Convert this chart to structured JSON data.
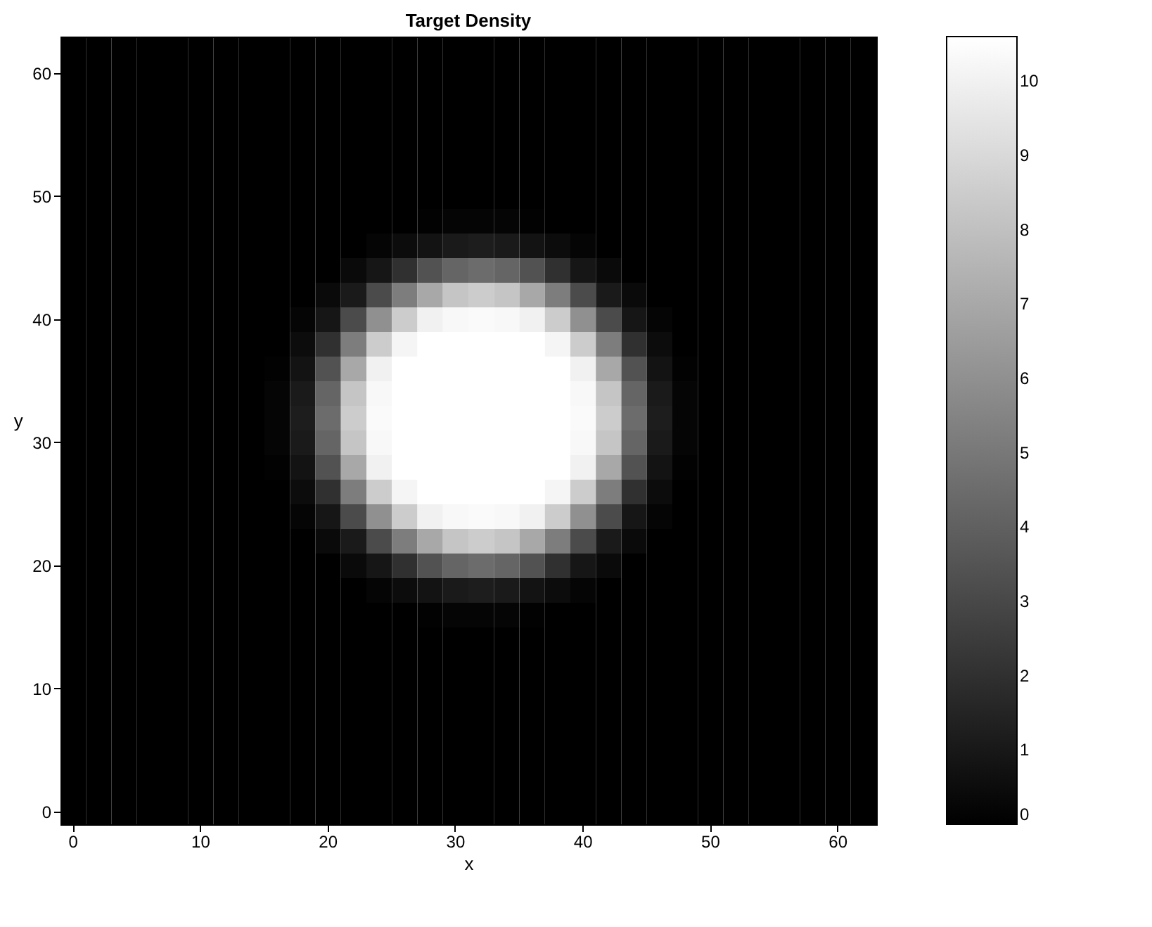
{
  "chart_data": {
    "type": "heatmap",
    "title": "Target Density",
    "xlabel": "x",
    "ylabel": "y",
    "categories": [
      "0",
      null,
      null,
      null,
      null,
      "10",
      null,
      null,
      null,
      null,
      "20",
      null,
      null,
      null,
      null,
      "30",
      null,
      null,
      null,
      null,
      "40",
      null,
      null,
      null,
      null,
      "50",
      null,
      null,
      null,
      null,
      "60",
      null
    ],
    "y_categories": [
      null,
      "60",
      null,
      null,
      null,
      null,
      "50",
      null,
      null,
      null,
      null,
      "40",
      null,
      null,
      null,
      null,
      "30",
      null,
      null,
      null,
      null,
      "20",
      null,
      null,
      null,
      null,
      "10",
      null,
      null,
      null,
      null,
      "0"
    ],
    "cells": [
      [
        0,
        0,
        0,
        0,
        0,
        0,
        0,
        0,
        0,
        0,
        0,
        0,
        0,
        0,
        0,
        0,
        0,
        0,
        0,
        0,
        0,
        0,
        0,
        0,
        0,
        0,
        0,
        0,
        0,
        0,
        0,
        0
      ],
      [
        0,
        0,
        0,
        0,
        0,
        0,
        0,
        0,
        0,
        0,
        0,
        0,
        0,
        0,
        0,
        0,
        0,
        0,
        0,
        0,
        0,
        0,
        0,
        0,
        0,
        0,
        0,
        0,
        0,
        0,
        0,
        0
      ],
      [
        0,
        0,
        0,
        0,
        0,
        0,
        0,
        0,
        0,
        0,
        0,
        0,
        0,
        0,
        0,
        0,
        0,
        0,
        0,
        0,
        0,
        0,
        0,
        0,
        0,
        0,
        0,
        0,
        0,
        0,
        0,
        0
      ],
      [
        0,
        0,
        0,
        0,
        0,
        0,
        0,
        0,
        0,
        0,
        0,
        0,
        0,
        0,
        0,
        0,
        0,
        0,
        0,
        0,
        0,
        0,
        0,
        0,
        0,
        0,
        0,
        0,
        0,
        0,
        0,
        0
      ],
      [
        0,
        0,
        0,
        0,
        0,
        0,
        0,
        0,
        0,
        0,
        0,
        0,
        0,
        0,
        0,
        0,
        0,
        0,
        0,
        0,
        0,
        0,
        0,
        0,
        0,
        0,
        0,
        0,
        0,
        0,
        0,
        0
      ],
      [
        0,
        0,
        0,
        0,
        0,
        0,
        0,
        0,
        0,
        0,
        0,
        0,
        0,
        0,
        0,
        0,
        0,
        0,
        0,
        0,
        0,
        0,
        0,
        0,
        0,
        0,
        0,
        0,
        0,
        0,
        0,
        0
      ],
      [
        0,
        0,
        0,
        0,
        0,
        0,
        0,
        0,
        0,
        0,
        0,
        0,
        0,
        0,
        0,
        0,
        0,
        0,
        0,
        0,
        0,
        0,
        0,
        0,
        0,
        0,
        0,
        0,
        0,
        0,
        0,
        0
      ],
      [
        0,
        0,
        0,
        0,
        0,
        0,
        0,
        0,
        0,
        0,
        0,
        0,
        0,
        0,
        0.1,
        0.2,
        0.2,
        0.2,
        0.1,
        0,
        0,
        0,
        0,
        0,
        0,
        0,
        0,
        0,
        0,
        0,
        0,
        0
      ],
      [
        0,
        0,
        0,
        0,
        0,
        0,
        0,
        0,
        0,
        0,
        0,
        0,
        0.2,
        0.5,
        0.8,
        1.1,
        1.2,
        1.1,
        0.8,
        0.5,
        0.2,
        0,
        0,
        0,
        0,
        0,
        0,
        0,
        0,
        0,
        0,
        0
      ],
      [
        0,
        0,
        0,
        0,
        0,
        0,
        0,
        0,
        0,
        0,
        0,
        0.4,
        0.9,
        2,
        3.4,
        4.2,
        4.5,
        4.2,
        3.4,
        2,
        0.9,
        0.4,
        0,
        0,
        0,
        0,
        0,
        0,
        0,
        0,
        0,
        0
      ],
      [
        0,
        0,
        0,
        0,
        0,
        0,
        0,
        0,
        0,
        0,
        0.4,
        1.1,
        3.1,
        5.2,
        7,
        8.2,
        8.5,
        8.2,
        7,
        5.2,
        3.1,
        1.1,
        0.4,
        0,
        0,
        0,
        0,
        0,
        0,
        0,
        0,
        0
      ],
      [
        0,
        0,
        0,
        0,
        0,
        0,
        0,
        0,
        0,
        0.2,
        0.9,
        3.1,
        6,
        8.5,
        10,
        10.3,
        10.4,
        10.3,
        10,
        8.5,
        6,
        3.1,
        0.9,
        0.2,
        0,
        0,
        0,
        0,
        0,
        0,
        0,
        0
      ],
      [
        0,
        0,
        0,
        0,
        0,
        0,
        0,
        0,
        0,
        0.5,
        2,
        5.2,
        8.5,
        10.2,
        10.6,
        10.6,
        10.6,
        10.6,
        10.6,
        10.2,
        8.5,
        5.2,
        2,
        0.5,
        0,
        0,
        0,
        0,
        0,
        0,
        0,
        0
      ],
      [
        0,
        0,
        0,
        0,
        0,
        0,
        0,
        0,
        0.1,
        0.8,
        3.4,
        7,
        10,
        10.6,
        10.6,
        10.6,
        10.6,
        10.6,
        10.6,
        10.6,
        10,
        7,
        3.4,
        0.8,
        0.1,
        0,
        0,
        0,
        0,
        0,
        0,
        0
      ],
      [
        0,
        0,
        0,
        0,
        0,
        0,
        0,
        0,
        0.2,
        1.1,
        4.2,
        8.2,
        10.3,
        10.6,
        10.6,
        10.6,
        10.6,
        10.6,
        10.6,
        10.6,
        10.3,
        8.2,
        4.2,
        1.1,
        0.2,
        0,
        0,
        0,
        0,
        0,
        0,
        0
      ],
      [
        0,
        0,
        0,
        0,
        0,
        0,
        0,
        0,
        0.2,
        1.2,
        4.5,
        8.5,
        10.4,
        10.6,
        10.6,
        10.6,
        10.6,
        10.6,
        10.6,
        10.6,
        10.4,
        8.5,
        4.5,
        1.2,
        0.2,
        0,
        0,
        0,
        0,
        0,
        0,
        0
      ],
      [
        0,
        0,
        0,
        0,
        0,
        0,
        0,
        0,
        0.2,
        1.1,
        4.2,
        8.2,
        10.3,
        10.6,
        10.6,
        10.6,
        10.6,
        10.6,
        10.6,
        10.6,
        10.3,
        8.2,
        4.2,
        1.1,
        0.2,
        0,
        0,
        0,
        0,
        0,
        0,
        0
      ],
      [
        0,
        0,
        0,
        0,
        0,
        0,
        0,
        0,
        0.1,
        0.8,
        3.4,
        7,
        10,
        10.6,
        10.6,
        10.6,
        10.6,
        10.6,
        10.6,
        10.6,
        10,
        7,
        3.4,
        0.8,
        0.1,
        0,
        0,
        0,
        0,
        0,
        0,
        0
      ],
      [
        0,
        0,
        0,
        0,
        0,
        0,
        0,
        0,
        0,
        0.5,
        2,
        5.2,
        8.5,
        10.2,
        10.6,
        10.6,
        10.6,
        10.6,
        10.6,
        10.2,
        8.5,
        5.2,
        2,
        0.5,
        0,
        0,
        0,
        0,
        0,
        0,
        0,
        0
      ],
      [
        0,
        0,
        0,
        0,
        0,
        0,
        0,
        0,
        0,
        0.2,
        0.9,
        3.1,
        6,
        8.5,
        10,
        10.3,
        10.4,
        10.3,
        10,
        8.5,
        6,
        3.1,
        0.9,
        0.2,
        0,
        0,
        0,
        0,
        0,
        0,
        0,
        0
      ],
      [
        0,
        0,
        0,
        0,
        0,
        0,
        0,
        0,
        0,
        0,
        0.4,
        1.1,
        3.1,
        5.2,
        7,
        8.2,
        8.5,
        8.2,
        7,
        5.2,
        3.1,
        1.1,
        0.4,
        0,
        0,
        0,
        0,
        0,
        0,
        0,
        0,
        0
      ],
      [
        0,
        0,
        0,
        0,
        0,
        0,
        0,
        0,
        0,
        0,
        0,
        0.4,
        0.9,
        2,
        3.4,
        4.2,
        4.5,
        4.2,
        3.4,
        2,
        0.9,
        0.4,
        0,
        0,
        0,
        0,
        0,
        0,
        0,
        0,
        0,
        0
      ],
      [
        0,
        0,
        0,
        0,
        0,
        0,
        0,
        0,
        0,
        0,
        0,
        0,
        0.2,
        0.5,
        0.8,
        1.1,
        1.2,
        1.1,
        0.8,
        0.5,
        0.2,
        0,
        0,
        0,
        0,
        0,
        0,
        0,
        0,
        0,
        0,
        0
      ],
      [
        0,
        0,
        0,
        0,
        0,
        0,
        0,
        0,
        0,
        0,
        0,
        0,
        0,
        0,
        0.1,
        0.2,
        0.2,
        0.2,
        0.1,
        0,
        0,
        0,
        0,
        0,
        0,
        0,
        0,
        0,
        0,
        0,
        0,
        0
      ],
      [
        0,
        0,
        0,
        0,
        0,
        0,
        0,
        0,
        0,
        0,
        0,
        0,
        0,
        0,
        0,
        0,
        0,
        0,
        0,
        0,
        0,
        0,
        0,
        0,
        0,
        0,
        0,
        0,
        0,
        0,
        0,
        0
      ],
      [
        0,
        0,
        0,
        0,
        0,
        0,
        0,
        0,
        0,
        0,
        0,
        0,
        0,
        0,
        0,
        0,
        0,
        0,
        0,
        0,
        0,
        0,
        0,
        0,
        0,
        0,
        0,
        0,
        0,
        0,
        0,
        0
      ],
      [
        0,
        0,
        0,
        0,
        0,
        0,
        0,
        0,
        0,
        0,
        0,
        0,
        0,
        0,
        0,
        0,
        0,
        0,
        0,
        0,
        0,
        0,
        0,
        0,
        0,
        0,
        0,
        0,
        0,
        0,
        0,
        0
      ],
      [
        0,
        0,
        0,
        0,
        0,
        0,
        0,
        0,
        0,
        0,
        0,
        0,
        0,
        0,
        0,
        0,
        0,
        0,
        0,
        0,
        0,
        0,
        0,
        0,
        0,
        0,
        0,
        0,
        0,
        0,
        0,
        0
      ],
      [
        0,
        0,
        0,
        0,
        0,
        0,
        0,
        0,
        0,
        0,
        0,
        0,
        0,
        0,
        0,
        0,
        0,
        0,
        0,
        0,
        0,
        0,
        0,
        0,
        0,
        0,
        0,
        0,
        0,
        0,
        0,
        0
      ],
      [
        0,
        0,
        0,
        0,
        0,
        0,
        0,
        0,
        0,
        0,
        0,
        0,
        0,
        0,
        0,
        0,
        0,
        0,
        0,
        0,
        0,
        0,
        0,
        0,
        0,
        0,
        0,
        0,
        0,
        0,
        0,
        0
      ],
      [
        0,
        0,
        0,
        0,
        0,
        0,
        0,
        0,
        0,
        0,
        0,
        0,
        0,
        0,
        0,
        0,
        0,
        0,
        0,
        0,
        0,
        0,
        0,
        0,
        0,
        0,
        0,
        0,
        0,
        0,
        0,
        0
      ],
      [
        0,
        0,
        0,
        0,
        0,
        0,
        0,
        0,
        0,
        0,
        0,
        0,
        0,
        0,
        0,
        0,
        0,
        0,
        0,
        0,
        0,
        0,
        0,
        0,
        0,
        0,
        0,
        0,
        0,
        0,
        0,
        0
      ]
    ],
    "clim": [
      0,
      10.6
    ],
    "cticks": [
      0,
      1,
      2,
      3,
      4,
      5,
      6,
      7,
      8,
      9,
      10
    ]
  }
}
